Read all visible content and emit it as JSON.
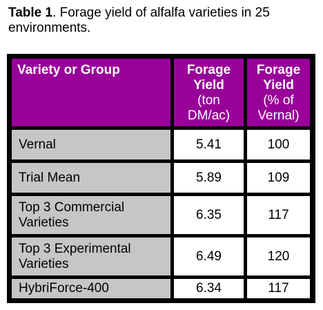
{
  "caption": {
    "label": "Table 1",
    "text": ". Forage yield of alfalfa varieties in 25 environments."
  },
  "headers": [
    [
      "Variety or Group"
    ],
    [
      "Forage",
      "Yield",
      "(ton",
      "DM/ac)"
    ],
    [
      "Forage",
      "Yield",
      "(% of",
      "Vernal)"
    ]
  ],
  "rows": [
    {
      "name": [
        "Vernal"
      ],
      "yield": "5.41",
      "pct": "100"
    },
    {
      "name": [
        "Trial Mean"
      ],
      "yield": "5.89",
      "pct": "109"
    },
    {
      "name": [
        "Top 3 Commercial",
        "Varieties"
      ],
      "yield": "6.35",
      "pct": "117"
    },
    {
      "name": [
        "Top 3 Experimental",
        "Varieties"
      ],
      "yield": "6.49",
      "pct": "120"
    },
    {
      "name": [
        "HybriForce-400"
      ],
      "yield": "6.34",
      "pct": "117"
    }
  ],
  "colors": {
    "header_bg": "#990099",
    "header_text": "#ffffff",
    "first_col_bg": "#c6c6c6",
    "border": "#000000"
  }
}
